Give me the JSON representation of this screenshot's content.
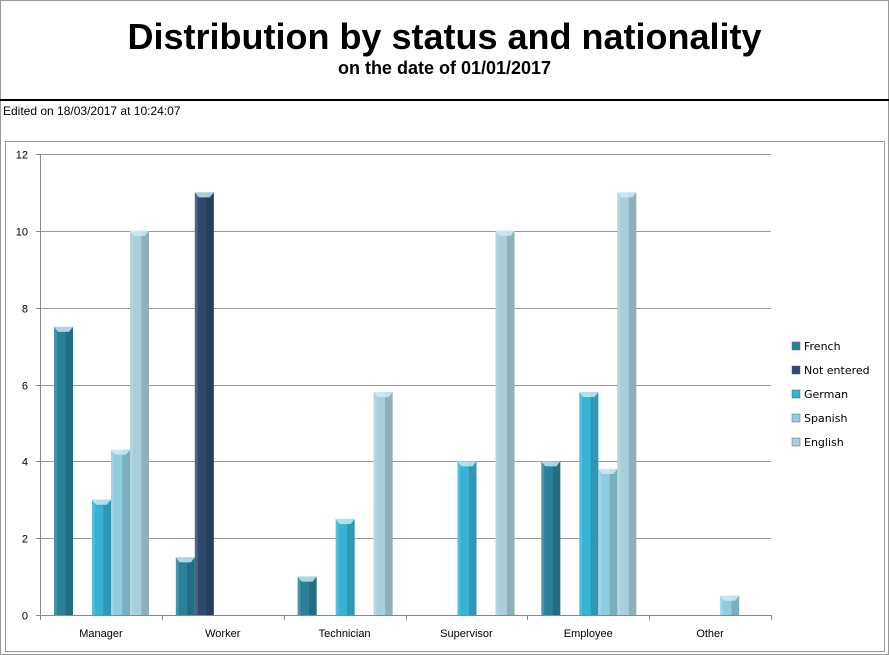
{
  "chart_data": {
    "type": "bar",
    "title": "Distribution by status and nationality",
    "subtitle": "on the date of 01/01/2017",
    "edited": "Edited on 18/03/2017 at 10:24:07",
    "xlabel": "",
    "ylabel": "",
    "ylim": [
      0,
      12
    ],
    "yticks": [
      "0",
      "2",
      "4",
      "6",
      "8",
      "10",
      "12"
    ],
    "grid": true,
    "legend_position": "right",
    "categories": [
      "Manager",
      "Worker",
      "Technician",
      "Supervisor",
      "Employee",
      "Other"
    ],
    "series": [
      {
        "name": "French",
        "color": "#2a8099",
        "values": [
          7.5,
          1.5,
          1,
          0,
          4,
          0
        ]
      },
      {
        "name": "Not entered",
        "color": "#2d4a6e",
        "values": [
          0,
          11,
          0,
          0,
          0,
          0
        ]
      },
      {
        "name": "German",
        "color": "#35b2d4",
        "values": [
          3,
          0,
          2.5,
          4,
          5.8,
          0
        ]
      },
      {
        "name": "Spanish",
        "color": "#8ecde0",
        "values": [
          4.3,
          0,
          0,
          0,
          3.8,
          0.5
        ]
      },
      {
        "name": "English",
        "color": "#a9cfdc",
        "values": [
          10,
          0,
          5.8,
          10,
          11,
          0
        ]
      }
    ]
  }
}
